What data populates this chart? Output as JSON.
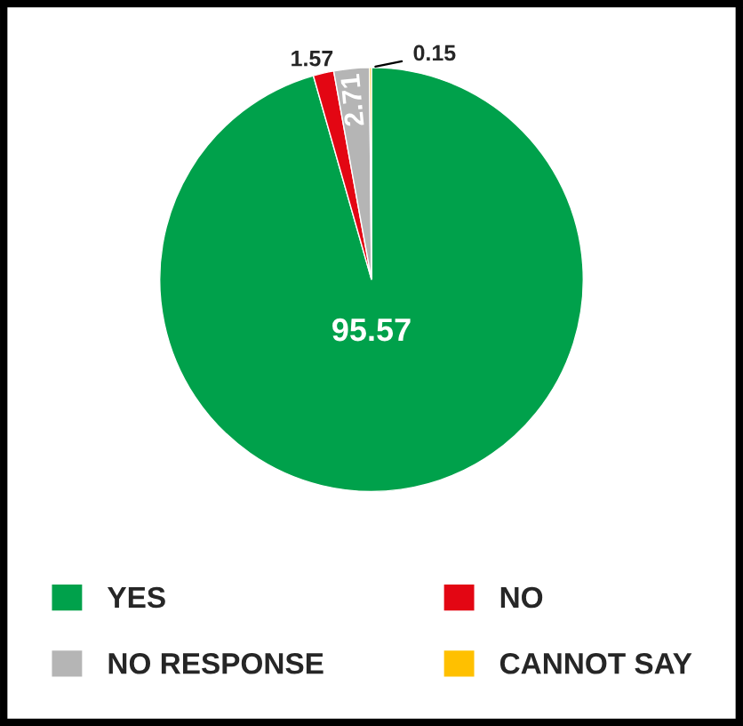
{
  "chart_data": {
    "type": "pie",
    "categories": [
      "YES",
      "NO",
      "NO RESPONSE",
      "CANNOT SAY"
    ],
    "values": [
      95.57,
      1.57,
      2.71,
      0.15
    ],
    "colors": [
      "#00a14b",
      "#e30613",
      "#b5b5b5",
      "#ffc000"
    ],
    "data_labels": true,
    "legend": "bottom"
  }
}
